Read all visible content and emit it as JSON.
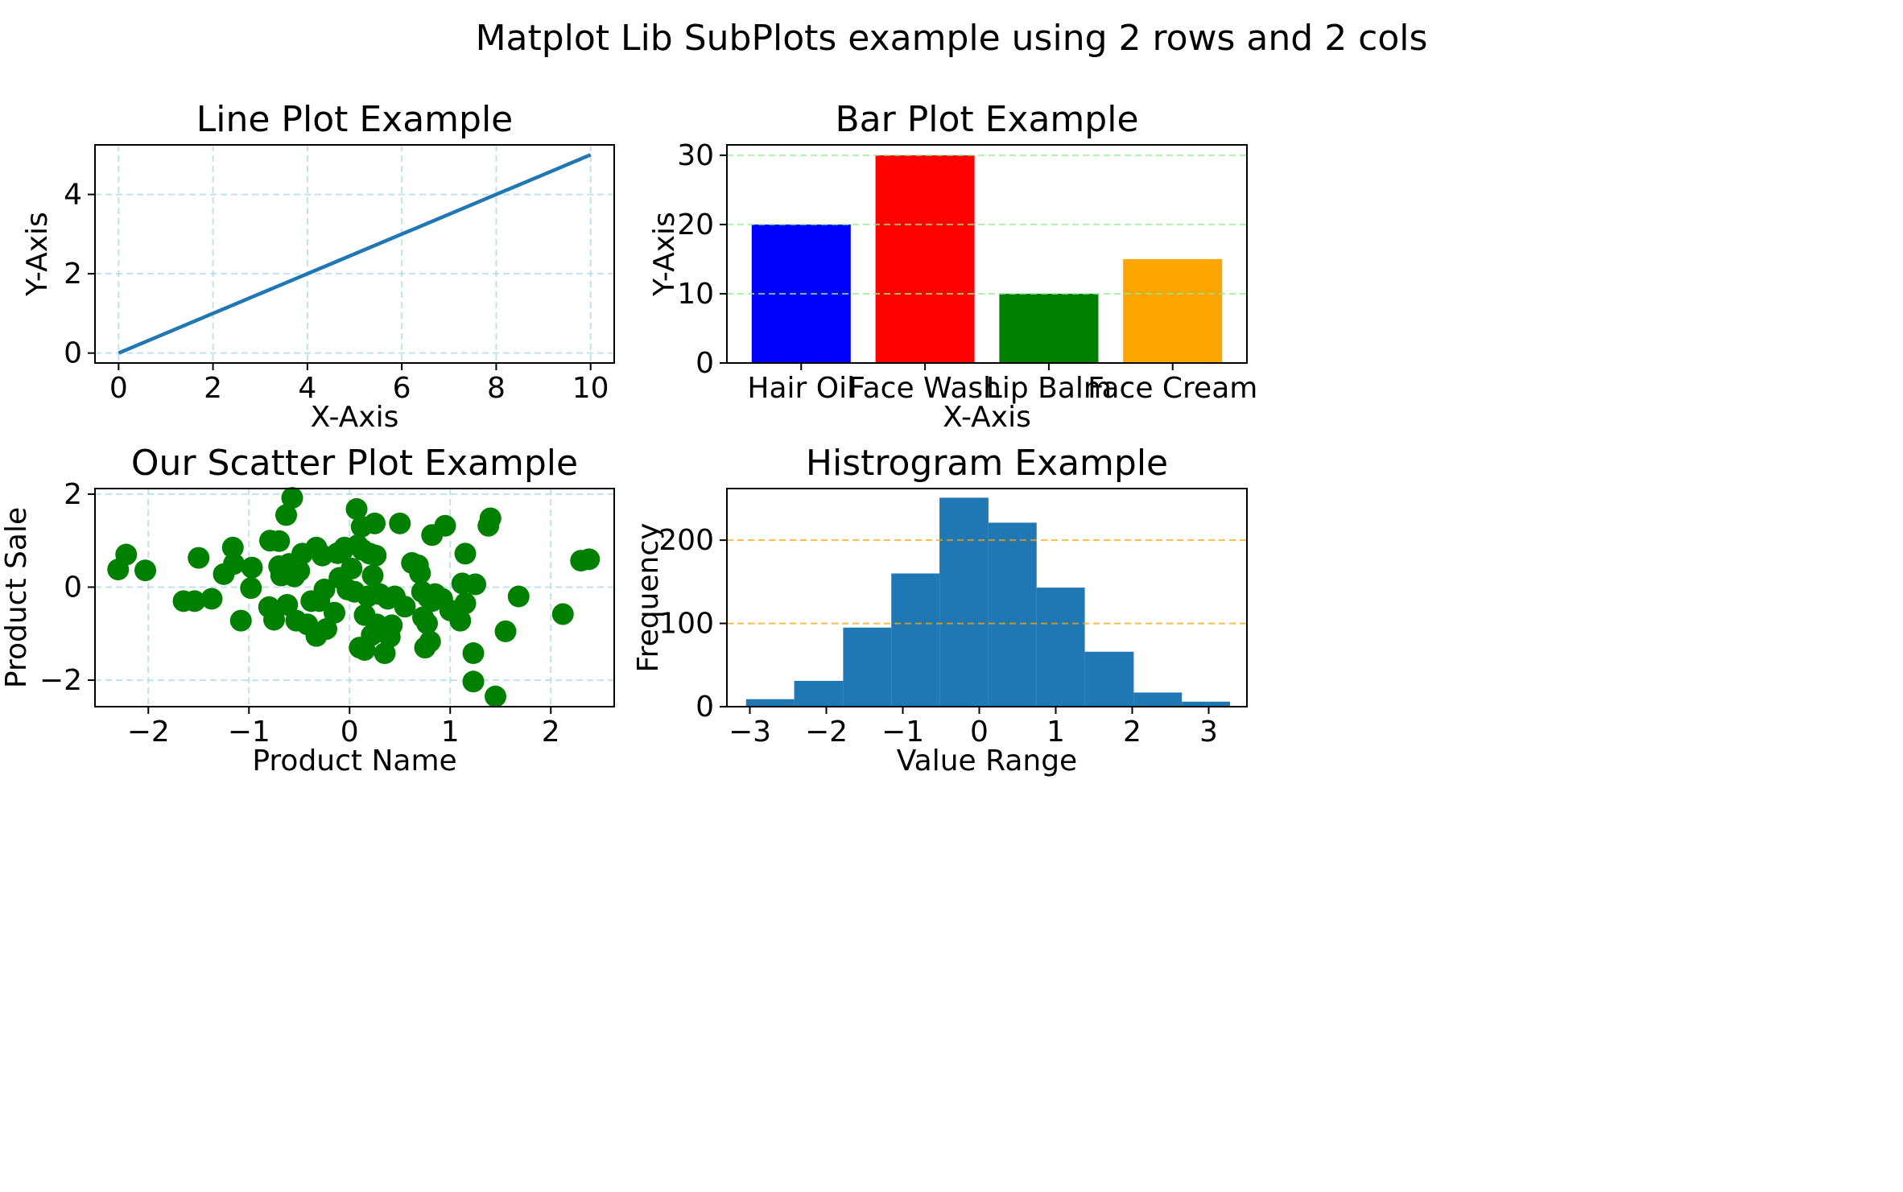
{
  "figure": {
    "suptitle": "Matplot Lib SubPlots example using 2 rows and 2 cols"
  },
  "chart_data": [
    {
      "type": "line",
      "title": "Line Plot Example",
      "xlabel": "X-Axis",
      "ylabel": "Y-Axis",
      "xlim": [
        -0.5,
        10.5
      ],
      "ylim": [
        -0.25,
        5.25
      ],
      "xticks": [
        0,
        2,
        4,
        6,
        8,
        10
      ],
      "yticks": [
        0,
        2,
        4
      ],
      "grid": true,
      "grid_color": "#add8e6",
      "series": [
        {
          "x": [
            0,
            10
          ],
          "y": [
            0,
            5
          ],
          "color": "#1f77b4"
        }
      ]
    },
    {
      "type": "bar",
      "title": "Bar Plot Example",
      "xlabel": "X-Axis",
      "ylabel": "Y-Axis",
      "categories": [
        "Hair Oil",
        "Face Wash",
        "Lip Balm",
        "Face Cream"
      ],
      "values": [
        20,
        30,
        10,
        15
      ],
      "colors": [
        "#0000ff",
        "#ff0000",
        "#008000",
        "#ffa500"
      ],
      "ylim": [
        0,
        31.5
      ],
      "yticks": [
        0,
        10,
        20,
        30
      ],
      "grid": "y",
      "grid_color": "#90ee90"
    },
    {
      "type": "scatter",
      "title": "Our Scatter Plot Example",
      "xlabel": "Product Name",
      "ylabel": "Product Sale",
      "xlim": [
        -2.53,
        2.63
      ],
      "ylim": [
        -2.57,
        2.12
      ],
      "xticks": [
        -2,
        -1,
        0,
        1,
        2
      ],
      "yticks": [
        -2,
        0,
        2
      ],
      "grid": true,
      "grid_color": "#add8e6",
      "color": "#008000",
      "points": [
        [
          -2.3,
          0.38
        ],
        [
          -2.22,
          0.7
        ],
        [
          -2.03,
          0.36
        ],
        [
          -1.65,
          -0.3
        ],
        [
          -1.54,
          -0.3
        ],
        [
          -1.5,
          0.63
        ],
        [
          -1.37,
          -0.25
        ],
        [
          -1.25,
          0.28
        ],
        [
          -1.16,
          0.85
        ],
        [
          -1.15,
          0.5
        ],
        [
          -1.08,
          -0.72
        ],
        [
          -0.97,
          0.42
        ],
        [
          -0.98,
          -0.02
        ],
        [
          -0.8,
          -0.43
        ],
        [
          -0.79,
          1.0
        ],
        [
          -0.75,
          -0.7
        ],
        [
          -0.7,
          0.99
        ],
        [
          -0.7,
          0.45
        ],
        [
          -0.68,
          0.25
        ],
        [
          -0.65,
          0.3
        ],
        [
          -0.63,
          1.55
        ],
        [
          -0.62,
          0.4
        ],
        [
          -0.62,
          -0.38
        ],
        [
          -0.6,
          0.5
        ],
        [
          -0.57,
          1.92
        ],
        [
          -0.55,
          0.23
        ],
        [
          -0.53,
          -0.72
        ],
        [
          -0.5,
          0.35
        ],
        [
          -0.47,
          0.72
        ],
        [
          -0.42,
          -0.8
        ],
        [
          -0.38,
          -0.3
        ],
        [
          -0.33,
          0.85
        ],
        [
          -0.33,
          -1.05
        ],
        [
          -0.3,
          -0.3
        ],
        [
          -0.27,
          0.68
        ],
        [
          -0.25,
          -0.05
        ],
        [
          -0.23,
          -0.9
        ],
        [
          -0.15,
          -0.55
        ],
        [
          -0.12,
          0.73
        ],
        [
          -0.1,
          0.2
        ],
        [
          -0.08,
          0.75
        ],
        [
          -0.05,
          0.85
        ],
        [
          -0.02,
          -0.05
        ],
        [
          0.02,
          0.4
        ],
        [
          0.05,
          -0.1
        ],
        [
          0.07,
          1.68
        ],
        [
          0.08,
          0.9
        ],
        [
          0.1,
          -1.3
        ],
        [
          0.12,
          1.3
        ],
        [
          0.13,
          0.8
        ],
        [
          0.15,
          -1.35
        ],
        [
          0.15,
          -0.6
        ],
        [
          0.18,
          -0.2
        ],
        [
          0.2,
          0.72
        ],
        [
          0.22,
          -1.03
        ],
        [
          0.23,
          0.25
        ],
        [
          0.25,
          1.37
        ],
        [
          0.26,
          0.68
        ],
        [
          0.27,
          -0.8
        ],
        [
          0.3,
          -0.15
        ],
        [
          0.32,
          -0.9
        ],
        [
          0.35,
          -1.42
        ],
        [
          0.38,
          -0.25
        ],
        [
          0.4,
          -1.07
        ],
        [
          0.42,
          -0.82
        ],
        [
          0.45,
          -0.2
        ],
        [
          0.5,
          1.37
        ],
        [
          0.55,
          -0.42
        ],
        [
          0.62,
          0.52
        ],
        [
          0.68,
          0.47
        ],
        [
          0.7,
          0.3
        ],
        [
          0.72,
          -0.1
        ],
        [
          0.73,
          -0.65
        ],
        [
          0.75,
          -1.3
        ],
        [
          0.77,
          -0.78
        ],
        [
          0.78,
          -0.22
        ],
        [
          0.8,
          -1.17
        ],
        [
          0.82,
          1.12
        ],
        [
          0.82,
          -0.3
        ],
        [
          0.85,
          -0.15
        ],
        [
          0.92,
          -0.25
        ],
        [
          0.95,
          1.32
        ],
        [
          1.0,
          -0.5
        ],
        [
          1.1,
          -0.72
        ],
        [
          1.12,
          0.08
        ],
        [
          1.15,
          0.72
        ],
        [
          1.15,
          -0.35
        ],
        [
          1.23,
          -2.03
        ],
        [
          1.23,
          -1.42
        ],
        [
          1.25,
          0.06
        ],
        [
          1.38,
          1.32
        ],
        [
          1.4,
          1.48
        ],
        [
          1.45,
          -2.35
        ],
        [
          1.55,
          -0.95
        ],
        [
          1.68,
          -0.2
        ],
        [
          2.12,
          -0.58
        ],
        [
          2.3,
          0.57
        ],
        [
          2.38,
          0.6
        ]
      ]
    },
    {
      "type": "bar",
      "subtype": "histogram",
      "title": "Histrogram Example",
      "xlabel": "Value Range",
      "ylabel": "Frequency",
      "xlim": [
        -3.3,
        3.5
      ],
      "ylim": [
        0,
        262
      ],
      "xticks": [
        -3,
        -2,
        -1,
        0,
        1,
        2,
        3
      ],
      "yticks": [
        0,
        100,
        200
      ],
      "grid": "y",
      "grid_color": "#ffa500",
      "color": "#1f77b4",
      "bin_edges": [
        -3.05,
        -2.42,
        -1.78,
        -1.15,
        -0.52,
        0.12,
        0.75,
        1.38,
        2.02,
        2.65,
        3.28
      ],
      "counts": [
        9,
        31,
        95,
        160,
        251,
        221,
        143,
        66,
        17,
        6
      ]
    }
  ]
}
